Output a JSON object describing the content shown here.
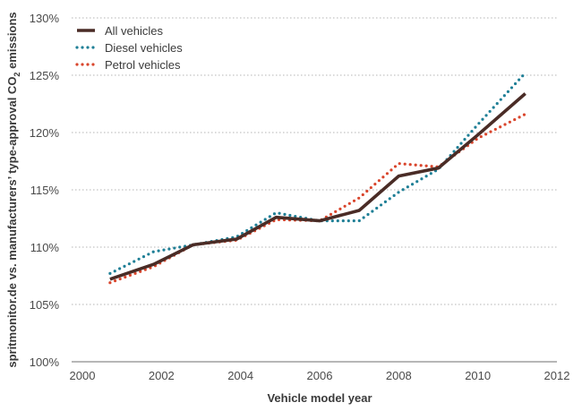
{
  "chart_data": {
    "type": "line",
    "title": "",
    "xlabel": "Vehicle model year",
    "ylabel_parts": [
      "spritmonitor.de vs. manufacturers’ type-approval CO",
      "2",
      " emissions"
    ],
    "xlim": [
      2000,
      2012
    ],
    "ylim": [
      100,
      130
    ],
    "x_ticks": [
      2000,
      2002,
      2004,
      2006,
      2008,
      2010,
      2012
    ],
    "y_ticks": [
      100,
      105,
      110,
      115,
      120,
      125,
      130
    ],
    "y_tick_labels": [
      "100%",
      "105%",
      "110%",
      "115%",
      "120%",
      "125%",
      "130%"
    ],
    "grid": "horizontal dotted",
    "legend_position": "top-left",
    "series": [
      {
        "name": "All vehicles",
        "style": "solid",
        "color": "#4a2c26",
        "x": [
          2000.7,
          2001.8,
          2002.8,
          2003.9,
          2004.9,
          2006.0,
          2007.0,
          2008.0,
          2009.0,
          2010.0,
          2011.2
        ],
        "values": [
          107.2,
          108.5,
          110.2,
          110.7,
          112.6,
          112.3,
          113.2,
          116.2,
          116.9,
          119.8,
          123.4
        ]
      },
      {
        "name": "Diesel vehicles",
        "style": "dotted",
        "color": "#1f7f96",
        "x": [
          2000.7,
          2001.8,
          2002.8,
          2003.9,
          2004.9,
          2006.0,
          2007.0,
          2008.0,
          2009.0,
          2010.0,
          2011.2
        ],
        "values": [
          107.7,
          109.6,
          110.2,
          110.9,
          113.0,
          112.3,
          112.3,
          114.8,
          116.8,
          120.7,
          125.2
        ]
      },
      {
        "name": "Petrol vehicles",
        "style": "dotted",
        "color": "#d9452c",
        "x": [
          2000.7,
          2001.8,
          2002.8,
          2003.9,
          2004.9,
          2006.0,
          2007.0,
          2008.0,
          2009.0,
          2010.0,
          2011.2
        ],
        "values": [
          106.9,
          108.3,
          110.2,
          110.6,
          112.4,
          112.3,
          114.3,
          117.3,
          117.0,
          119.5,
          121.6
        ]
      }
    ]
  }
}
